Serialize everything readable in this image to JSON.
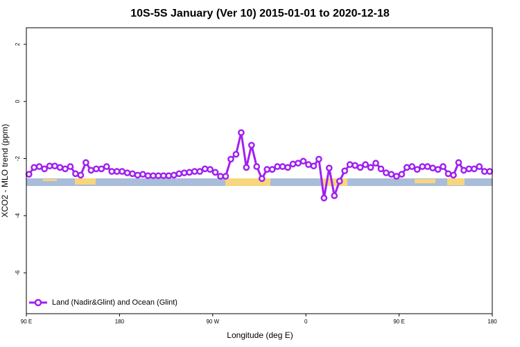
{
  "chart_data": {
    "type": "line",
    "title": "10S-5S January (Ver 10)   2015-01-01 to 2020-12-18",
    "x_label": "Longitude (deg E)",
    "y_label": "XCO2 - MLO trend (ppm)",
    "xlim": [
      90,
      540
    ],
    "ylim": [
      -7.43,
      2.58
    ],
    "xticks": [
      {
        "value": 90,
        "label": "90 E"
      },
      {
        "value": 180,
        "label": "180"
      },
      {
        "value": 270,
        "label": "90 W"
      },
      {
        "value": 360,
        "label": "0"
      },
      {
        "value": 450,
        "label": "90 E"
      },
      {
        "value": 540,
        "label": "180"
      }
    ],
    "yticks": [
      2,
      0,
      -2,
      -4,
      -6
    ],
    "legend": "bottom-left",
    "series": [
      {
        "name": "Land (Nadir&Glint) and Ocean (Glint)",
        "color": "#a020f0",
        "x": [
          92.5,
          97.5,
          102.5,
          107.5,
          112.5,
          117.5,
          122.5,
          127.5,
          132.5,
          137.5,
          142.5,
          147.5,
          152.5,
          157.5,
          162.5,
          167.5,
          172.5,
          177.5,
          182.5,
          187.5,
          192.5,
          197.5,
          202.5,
          207.5,
          212.5,
          217.5,
          222.5,
          227.5,
          232.5,
          237.5,
          242.5,
          247.5,
          252.5,
          257.5,
          262.5,
          267.5,
          272.5,
          277.5,
          282.5,
          287.5,
          292.5,
          297.5,
          302.5,
          307.5,
          312.5,
          317.5,
          322.5,
          327.5,
          332.5,
          337.5,
          342.5,
          347.5,
          352.5,
          357.5,
          362.5,
          367.5,
          372.5,
          377.5,
          382.5,
          387.5,
          392.5,
          397.5,
          402.5,
          407.5,
          412.5,
          417.5,
          422.5,
          427.5,
          432.5,
          437.5,
          442.5,
          447.5,
          452.5,
          457.5,
          462.5,
          467.5,
          472.5,
          477.5,
          482.5,
          487.5,
          492.5,
          497.5,
          502.5,
          507.5,
          512.5,
          517.5,
          522.5,
          527.5,
          532.5,
          537.5
        ],
        "values": [
          -2.55,
          -2.31,
          -2.28,
          -2.36,
          -2.26,
          -2.26,
          -2.31,
          -2.36,
          -2.28,
          -2.53,
          -2.58,
          -2.14,
          -2.41,
          -2.36,
          -2.36,
          -2.28,
          -2.45,
          -2.45,
          -2.45,
          -2.5,
          -2.53,
          -2.58,
          -2.55,
          -2.6,
          -2.6,
          -2.6,
          -2.6,
          -2.6,
          -2.58,
          -2.53,
          -2.5,
          -2.48,
          -2.45,
          -2.45,
          -2.36,
          -2.38,
          -2.48,
          -2.62,
          -2.62,
          -2.02,
          -1.85,
          -1.09,
          -2.31,
          -1.53,
          -2.28,
          -2.7,
          -2.38,
          -2.38,
          -2.28,
          -2.28,
          -2.31,
          -2.19,
          -2.16,
          -2.09,
          -2.21,
          -2.26,
          -2.02,
          -3.38,
          -2.33,
          -3.3,
          -2.79,
          -2.43,
          -2.21,
          -2.24,
          -2.31,
          -2.21,
          -2.31,
          -2.16,
          -2.36,
          -2.5,
          -2.55,
          -2.62,
          -2.55,
          -2.31,
          -2.28,
          -2.38,
          -2.28,
          -2.28,
          -2.33,
          -2.38,
          -2.28,
          -2.53,
          -2.58,
          -2.14,
          -2.41,
          -2.36,
          -2.36,
          -2.28,
          -2.45,
          -2.45
        ]
      }
    ]
  }
}
